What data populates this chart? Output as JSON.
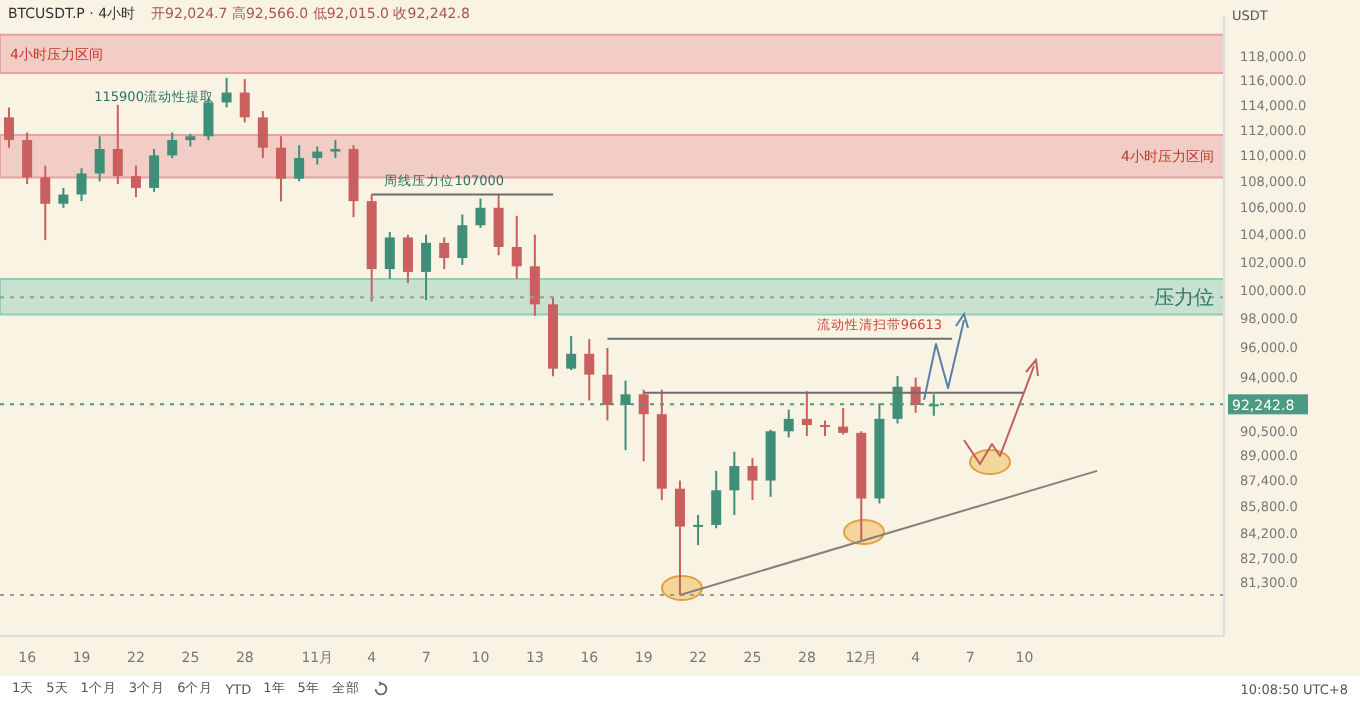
{
  "chart_data": {
    "type": "candlestick",
    "title": "BTCUSDT.P · 4小时",
    "ylabel": "USDT",
    "annotations": [
      "开92,024.7 高92,566.0 低92,015.0 收92,242.8",
      "10:08:50 UTC+8",
      "1天",
      "5天",
      "1个月",
      "3个月",
      "6个月",
      "YTD",
      "1年",
      "5年",
      "全部",
      {
        "text": "115900流动性提取",
        "x": "--10-23",
        "y": 115900
      },
      {
        "text": "周线压力位107000",
        "x": "--11-08",
        "y": 107000
      },
      {
        "text": "流动性清扫带96613",
        "x": "--12-02",
        "y": 96613
      }
    ],
    "x": [
      "--10-15",
      "--10-16",
      "--10-17",
      "--10-18",
      "--10-19",
      "--10-20",
      "--10-21",
      "--10-22",
      "--10-23",
      "--10-24",
      "--10-25",
      "--10-26",
      "--10-27",
      "--10-28",
      "--10-29",
      "--10-30",
      "--10-31",
      "--11-01",
      "--11-02",
      "--11-03",
      "--11-04",
      "--11-05",
      "--11-06",
      "--11-07",
      "--11-08",
      "--11-09",
      "--11-10",
      "--11-11",
      "--11-12",
      "--11-13",
      "--11-14",
      "--11-15",
      "--11-16",
      "--11-17",
      "--11-18",
      "--11-19",
      "--11-20",
      "--11-21",
      "--11-22",
      "--11-23",
      "--11-24",
      "--11-25",
      "--11-26",
      "--11-27",
      "--11-28",
      "--11-29",
      "--11-30",
      "--12-01",
      "--12-02",
      "--12-03",
      "--12-04",
      "--12-05"
    ],
    "ohlc": [
      [
        113000,
        113800,
        110600,
        111200
      ],
      [
        111200,
        111800,
        107800,
        108300
      ],
      [
        108300,
        109200,
        103600,
        106300
      ],
      [
        106300,
        107500,
        106000,
        107000
      ],
      [
        107000,
        109000,
        106500,
        108600
      ],
      [
        108600,
        111500,
        108000,
        110500
      ],
      [
        110500,
        114000,
        107800,
        108400
      ],
      [
        108400,
        109200,
        106800,
        107500
      ],
      [
        107500,
        110500,
        107200,
        110000
      ],
      [
        110000,
        111800,
        109800,
        111200
      ],
      [
        111200,
        111700,
        110700,
        111500
      ],
      [
        111500,
        114500,
        111200,
        114200
      ],
      [
        114200,
        116200,
        113800,
        115000
      ],
      [
        115000,
        116100,
        112600,
        113000
      ],
      [
        113000,
        113500,
        109800,
        110600
      ],
      [
        110600,
        111500,
        106500,
        108200
      ],
      [
        108200,
        110800,
        108000,
        109800
      ],
      [
        109800,
        110700,
        109300,
        110300
      ],
      [
        110300,
        111200,
        109800,
        110500
      ],
      [
        110500,
        110800,
        105300,
        106500
      ],
      [
        106500,
        107000,
        99200,
        101500
      ],
      [
        101500,
        104200,
        100800,
        103800
      ],
      [
        103800,
        104000,
        100500,
        101300
      ],
      [
        101300,
        104000,
        99300,
        103400
      ],
      [
        103400,
        103800,
        101500,
        102300
      ],
      [
        102300,
        105500,
        101800,
        104700
      ],
      [
        104700,
        106700,
        104500,
        106000
      ],
      [
        106000,
        107000,
        102500,
        103100
      ],
      [
        103100,
        105400,
        100800,
        101700
      ],
      [
        101700,
        104000,
        98200,
        99000
      ],
      [
        99000,
        99500,
        94100,
        94600
      ],
      [
        94600,
        96800,
        94500,
        95600
      ],
      [
        95600,
        96600,
        92500,
        94200
      ],
      [
        94200,
        96000,
        91200,
        92200
      ],
      [
        92200,
        93800,
        89300,
        92900
      ],
      [
        92900,
        93200,
        88600,
        91600
      ],
      [
        91600,
        93200,
        86200,
        86900
      ],
      [
        86900,
        87400,
        80600,
        84600
      ],
      [
        84600,
        85300,
        83500,
        84700
      ],
      [
        84700,
        88000,
        84500,
        86800
      ],
      [
        86800,
        89200,
        85300,
        88300
      ],
      [
        88300,
        88800,
        86200,
        87400
      ],
      [
        87400,
        90600,
        86400,
        90500
      ],
      [
        90500,
        91900,
        90100,
        91300
      ],
      [
        91300,
        93100,
        90200,
        90900
      ],
      [
        90900,
        91200,
        90200,
        90800
      ],
      [
        90800,
        92000,
        90300,
        90400
      ],
      [
        90400,
        90500,
        83800,
        86300
      ],
      [
        86300,
        92300,
        86000,
        91300
      ],
      [
        91300,
        94100,
        91000,
        93400
      ],
      [
        93400,
        94000,
        91700,
        92200
      ],
      [
        92200,
        92900,
        91500,
        92242.8
      ]
    ],
    "series": [
      {
        "type": "line",
        "color": "#8a7f78",
        "x": [
          "--11-21",
          "--12-14"
        ],
        "values": [
          80600,
          88000
        ]
      },
      {
        "type": "line",
        "color": "#6d6d6d",
        "x": [
          "--11-04",
          "--11-14"
        ],
        "values": [
          107000,
          107000
        ]
      },
      {
        "type": "line",
        "color": "#6d6d6d",
        "x": [
          "--11-17",
          "--12-06"
        ],
        "values": [
          96613,
          96613
        ]
      },
      {
        "type": "line",
        "color": "#6d6d6d",
        "x": [
          "--11-19",
          "--12-10"
        ],
        "values": [
          93000,
          93000
        ]
      }
    ],
    "bands": [
      {
        "axis": "y",
        "from": 116600,
        "to": 119800,
        "label": "4小时压力区间",
        "color": "#e8a0a0"
      },
      {
        "axis": "y",
        "from": 108300,
        "to": 111600,
        "label": "4小时压力区间",
        "color": "#e8a0a0"
      },
      {
        "axis": "y",
        "from": 98300,
        "to": 100800,
        "label": "压力位",
        "color": "#8fcfb5"
      }
    ],
    "ref_lines": [
      {
        "axis": "y",
        "value": 99500,
        "label": null,
        "color": "#9a9a9a",
        "line_style": "dotted"
      },
      {
        "axis": "y",
        "value": 80600,
        "label": null,
        "color": "#9a9a9a",
        "line_style": "dotted"
      },
      {
        "axis": "y",
        "value": 92242.8,
        "label": "92,242.8",
        "color": "#4c9a83",
        "line_style": "dotted"
      }
    ],
    "log": true,
    "grid": false,
    "ylim": [
      78300,
      121400
    ],
    "yticks": [
      {
        "value": 118000,
        "label": "118,000.0"
      },
      {
        "value": 116000,
        "label": "116,000.0"
      },
      {
        "value": 114000,
        "label": "114,000.0"
      },
      {
        "value": 112000,
        "label": "112,000.0"
      },
      {
        "value": 110000,
        "label": "110,000.0"
      },
      {
        "value": 108000,
        "label": "108,000.0"
      },
      {
        "value": 106000,
        "label": "106,000.0"
      },
      {
        "value": 104000,
        "label": "104,000.0"
      },
      {
        "value": 102000,
        "label": "102,000.0"
      },
      {
        "value": 100000,
        "label": "100,000.0"
      },
      {
        "value": 98000,
        "label": "98,000.0"
      },
      {
        "value": 96000,
        "label": "96,000.0"
      },
      {
        "value": 94000,
        "label": "94,000.0"
      },
      {
        "value": 90500,
        "label": "90,500.0"
      },
      {
        "value": 89000,
        "label": "89,000.0"
      },
      {
        "value": 87400,
        "label": "87,400.0"
      },
      {
        "value": 85800,
        "label": "85,800.0"
      },
      {
        "value": 84200,
        "label": "84,200.0"
      },
      {
        "value": 82700,
        "label": "82,700.0"
      },
      {
        "value": 81300,
        "label": "81,300.0"
      }
    ],
    "xlim": [
      "--10-14T12:00",
      "--12-21"
    ],
    "xticks": [
      {
        "value": "--10-16",
        "label": "16"
      },
      {
        "value": "--10-19",
        "label": "19"
      },
      {
        "value": "--10-22",
        "label": "22"
      },
      {
        "value": "--10-25",
        "label": "25"
      },
      {
        "value": "--10-28",
        "label": "28"
      },
      {
        "value": "--11-01",
        "label": "11月"
      },
      {
        "value": "--11-04",
        "label": "4"
      },
      {
        "value": "--11-07",
        "label": "7"
      },
      {
        "value": "--11-10",
        "label": "10"
      },
      {
        "value": "--11-13",
        "label": "13"
      },
      {
        "value": "--11-16",
        "label": "16"
      },
      {
        "value": "--11-19",
        "label": "19"
      },
      {
        "value": "--11-22",
        "label": "22"
      },
      {
        "value": "--11-25",
        "label": "25"
      },
      {
        "value": "--11-28",
        "label": "28"
      },
      {
        "value": "--12-01",
        "label": "12月"
      },
      {
        "value": "--12-04",
        "label": "4"
      },
      {
        "value": "--12-07",
        "label": "7"
      },
      {
        "value": "--12-10",
        "label": "10"
      }
    ]
  }
}
